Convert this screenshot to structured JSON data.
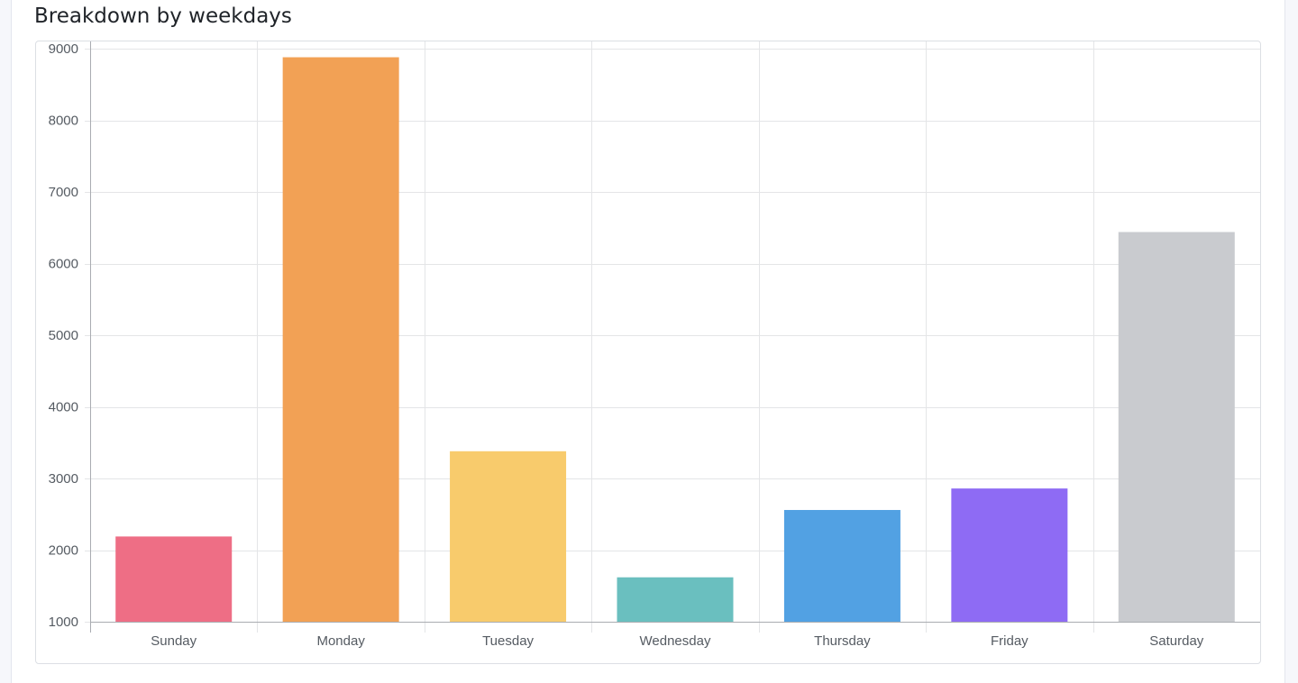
{
  "card": {
    "title": "Breakdown by weekdays"
  },
  "chart_data": {
    "type": "bar",
    "categories": [
      "Sunday",
      "Monday",
      "Tuesday",
      "Wednesday",
      "Thursday",
      "Friday",
      "Saturday"
    ],
    "values": [
      2190,
      8880,
      3380,
      1620,
      2560,
      2860,
      6440
    ],
    "colors": [
      "#ee6e85",
      "#f2a155",
      "#f8cb6c",
      "#6abfbf",
      "#52a1e3",
      "#8e6bf4",
      "#c9cbcf"
    ],
    "ylim": [
      1000,
      9000
    ],
    "yticks": [
      1000,
      2000,
      3000,
      4000,
      5000,
      6000,
      7000,
      8000,
      9000
    ],
    "xlabel": "",
    "ylabel": "",
    "grid": true,
    "legend": "none"
  }
}
